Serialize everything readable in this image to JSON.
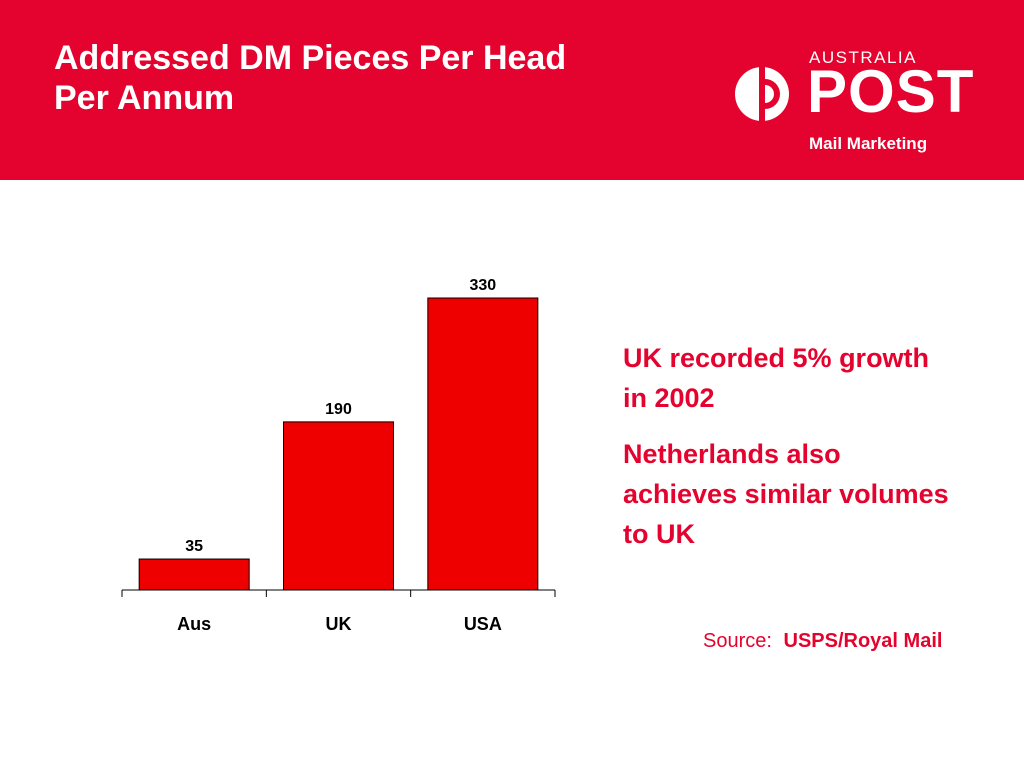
{
  "header": {
    "title_line1": "Addressed DM Pieces Per Head",
    "title_line2": "Per Annum",
    "brand_color": "#e4032e"
  },
  "logo": {
    "country": "AUSTRALIA",
    "wordmark": "POST",
    "subtitle": "Mail Marketing",
    "icon": "australia-post-p-logo"
  },
  "notes": [
    "UK recorded 5% growth in 2002",
    "Netherlands also achieves similar volumes to UK"
  ],
  "source": {
    "label": "Source:",
    "value": "USPS/Royal Mail"
  },
  "chart_data": {
    "type": "bar",
    "categories": [
      "Aus",
      "UK",
      "USA"
    ],
    "values": [
      35,
      190,
      330
    ],
    "title": "",
    "xlabel": "",
    "ylabel": "",
    "ylim": [
      0,
      330
    ],
    "grid": false,
    "legend": "none",
    "data_labels": [
      "35",
      "190",
      "330"
    ],
    "bar_color": "#ee0000"
  }
}
